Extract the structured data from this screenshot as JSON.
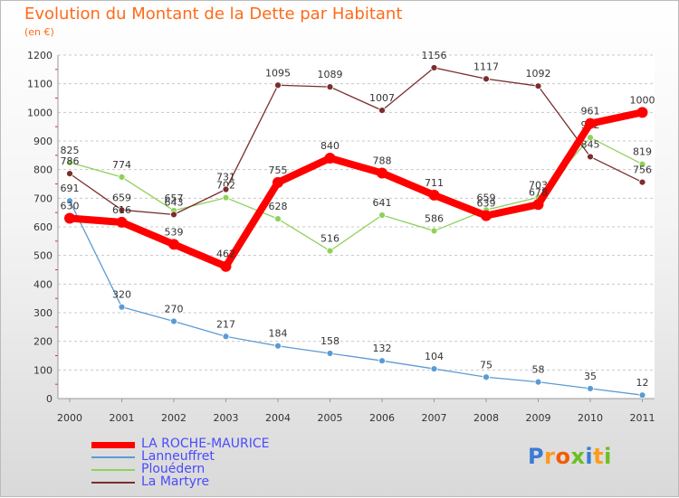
{
  "header": {
    "title": "Evolution du Montant de la Dette par Habitant",
    "subtitle": "(en €)"
  },
  "logo": {
    "text": "Proxiti",
    "colors": [
      "#3a7bd5",
      "#ff9a1a",
      "#f25c05",
      "#6bbf22",
      "#3a7bd5",
      "#ff9a1a",
      "#6bbf22"
    ]
  },
  "chart_data": {
    "type": "line",
    "title": "Evolution du Montant de la Dette par Habitant",
    "subtitle": "(en €)",
    "xlabel": "",
    "ylabel": "",
    "x": [
      "2000",
      "2001",
      "2002",
      "2003",
      "2004",
      "2005",
      "2006",
      "2007",
      "2008",
      "2009",
      "2010",
      "2011"
    ],
    "ylim": [
      0,
      1200
    ],
    "yticks": [
      "0",
      "100",
      "200",
      "300",
      "400",
      "500",
      "600",
      "700",
      "800",
      "900",
      "1000",
      "1100",
      "1200"
    ],
    "grid": "horizontal dashed",
    "legend_position": "bottom-left",
    "series": [
      {
        "name": "Lanneuffret",
        "color": "#5b9bd5",
        "values": [
          691,
          320,
          270,
          217,
          184,
          158,
          132,
          104,
          75,
          58,
          35,
          12
        ]
      },
      {
        "name": "Plouédern",
        "color": "#8fd15c",
        "values": [
          825,
          774,
          657,
          702,
          628,
          516,
          641,
          586,
          659,
          703,
          912,
          819
        ]
      },
      {
        "name": "La Martyre",
        "color": "#7a2e2e",
        "values": [
          786,
          659,
          643,
          731,
          1095,
          1089,
          1007,
          1156,
          1117,
          1092,
          845,
          756
        ]
      },
      {
        "name": "LA ROCHE-MAURICE",
        "color": "#ff0000",
        "values": [
          630,
          616,
          539,
          462,
          755,
          840,
          788,
          711,
          639,
          678,
          961,
          1000
        ]
      }
    ],
    "legend": [
      {
        "name": "LA ROCHE-MAURICE",
        "color": "#ff0000",
        "text_color": "#4a4aff"
      },
      {
        "name": "Lanneuffret",
        "color": "#5b9bd5",
        "text_color": "#4a4aff"
      },
      {
        "name": "Plouédern",
        "color": "#8fd15c",
        "text_color": "#4a4aff"
      },
      {
        "name": "La Martyre",
        "color": "#7a2e2e",
        "text_color": "#4a4aff"
      }
    ]
  }
}
